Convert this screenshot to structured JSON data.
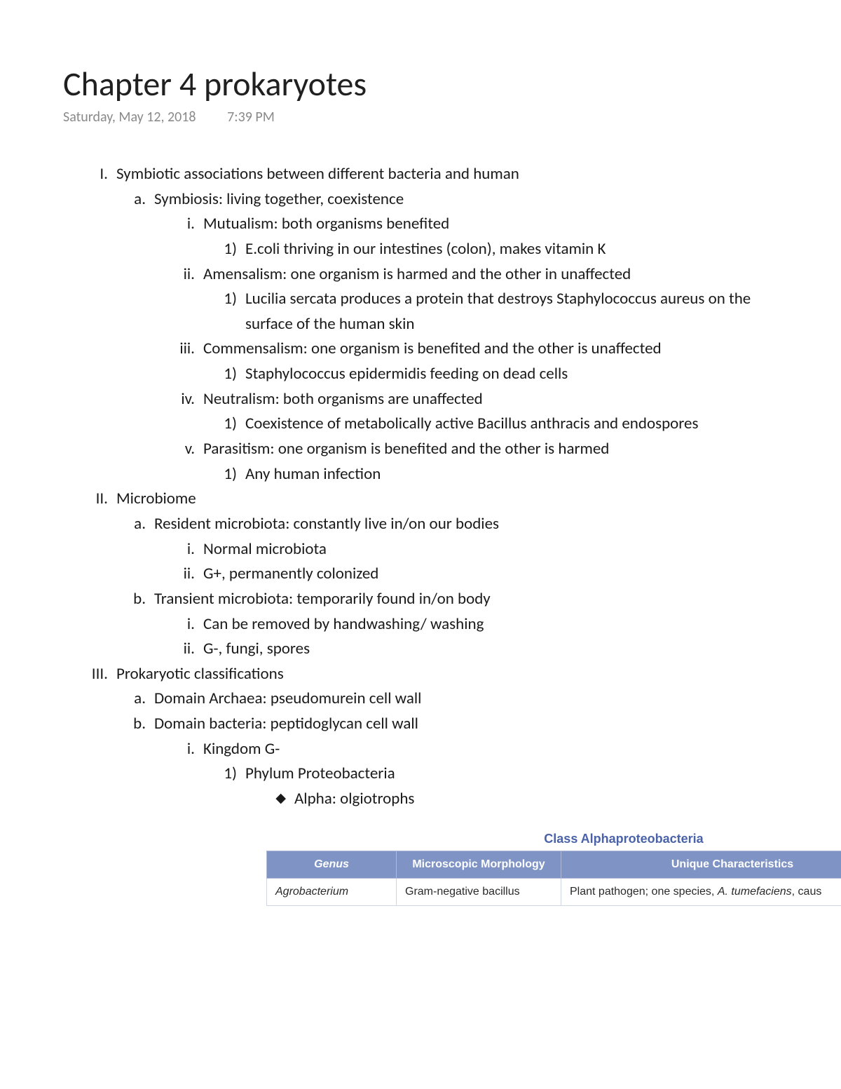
{
  "title": "Chapter 4 prokaryotes",
  "date": "Saturday, May 12, 2018",
  "time": "7:39 PM",
  "outline": [
    {
      "level": 1,
      "marker": "I.",
      "text": "Symbiotic associations between different bacteria and human"
    },
    {
      "level": 2,
      "marker": "a.",
      "text": "Symbiosis: living together, coexistence"
    },
    {
      "level": 3,
      "marker": "i.",
      "text": "Mutualism: both organisms benefited"
    },
    {
      "level": 4,
      "marker": "1)",
      "text": "E.coli thriving in our intestines (colon), makes vitamin K"
    },
    {
      "level": 3,
      "marker": "ii.",
      "text": "Amensalism: one organism is harmed and the other in unaffected"
    },
    {
      "level": 4,
      "marker": "1)",
      "text": "Lucilia sercata produces a protein that destroys Staphylococcus aureus on the surface of the human skin"
    },
    {
      "level": 3,
      "marker": "iii.",
      "text": "Commensalism: one organism is benefited and the other is unaffected"
    },
    {
      "level": 4,
      "marker": "1)",
      "text": "Staphylococcus epidermidis feeding on dead cells"
    },
    {
      "level": 3,
      "marker": "iv.",
      "text": "Neutralism: both organisms are unaffected"
    },
    {
      "level": 4,
      "marker": "1)",
      "text": "Coexistence of metabolically active Bacillus anthracis and endospores"
    },
    {
      "level": 3,
      "marker": "v.",
      "text": "Parasitism: one organism is benefited and the other is harmed"
    },
    {
      "level": 4,
      "marker": "1)",
      "text": "Any human infection"
    },
    {
      "level": 1,
      "marker": "II.",
      "text": "Microbiome"
    },
    {
      "level": 2,
      "marker": "a.",
      "text": "Resident microbiota: constantly live in/on our bodies"
    },
    {
      "level": 3,
      "marker": "i.",
      "text": "Normal microbiota"
    },
    {
      "level": 3,
      "marker": "ii.",
      "text": "G+, permanently colonized"
    },
    {
      "level": 2,
      "marker": "b.",
      "text": "Transient microbiota: temporarily found in/on body"
    },
    {
      "level": 3,
      "marker": "i.",
      "text": "Can be removed by handwashing/ washing"
    },
    {
      "level": 3,
      "marker": "ii.",
      "text": "G-, fungi, spores"
    },
    {
      "level": 1,
      "marker": "III.",
      "text": "Prokaryotic classifications"
    },
    {
      "level": 2,
      "marker": "a.",
      "text": "Domain Archaea: pseudomurein cell wall"
    },
    {
      "level": 2,
      "marker": "b.",
      "text": "Domain bacteria: peptidoglycan cell wall"
    },
    {
      "level": 3,
      "marker": "i.",
      "text": "Kingdom G-"
    },
    {
      "level": 4,
      "marker": "1)",
      "text": "Phylum Proteobacteria"
    },
    {
      "level": 6,
      "marker": "◆",
      "text": "Alpha: olgiotrophs"
    }
  ],
  "table": {
    "caption": "Class Alphaproteobacteria",
    "columns": [
      "Genus",
      "Microscopic Morphology",
      "Unique Characteristics"
    ],
    "rows": [
      {
        "genus": "Agrobacterium",
        "morphology": "Gram-negative bacillus",
        "characteristics_prefix": "Plant pathogen; one species, ",
        "characteristics_species": "A. tumefaciens",
        "characteristics_suffix": ", caus"
      }
    ],
    "header_bg": "#7f94c5",
    "header_fg": "#ffffff",
    "caption_color": "#4a62a8",
    "border_color": "#d0d5e4"
  }
}
